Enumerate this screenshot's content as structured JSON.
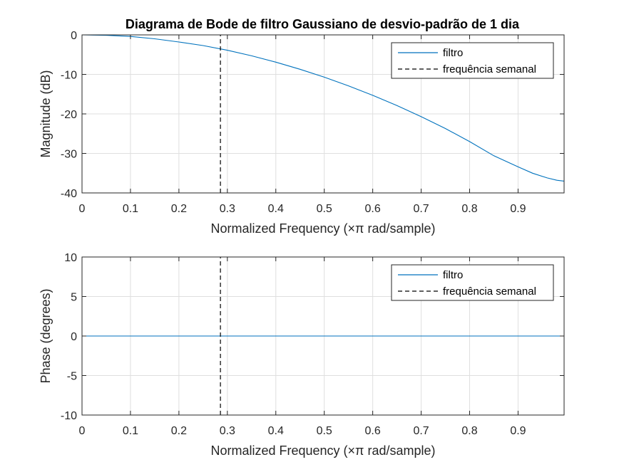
{
  "chart_data": [
    {
      "type": "line",
      "title": "Diagrama de Bode de filtro Gaussiano de desvio-padrão de 1 dia",
      "xlabel": "Normalized Frequency  (×π rad/sample)",
      "ylabel": "Magnitude (dB)",
      "xlim": [
        0,
        0.995
      ],
      "ylim": [
        -40,
        0
      ],
      "xticks": [
        0,
        0.1,
        0.2,
        0.3,
        0.4,
        0.5,
        0.6,
        0.7,
        0.8,
        0.9
      ],
      "xtick_labels": [
        "0",
        "0.1",
        "0.2",
        "0.3",
        "0.4",
        "0.5",
        "0.6",
        "0.7",
        "0.8",
        "0.9"
      ],
      "yticks": [
        0,
        -10,
        -20,
        -30,
        -40
      ],
      "ytick_labels": [
        "0",
        "-10",
        "-20",
        "-30",
        "-40"
      ],
      "grid": true,
      "legend_position": "top-right",
      "series": [
        {
          "name": "filtro",
          "color": "#0072BD",
          "style": "solid",
          "x": [
            0,
            0.05,
            0.1,
            0.15,
            0.2,
            0.25,
            0.3,
            0.35,
            0.4,
            0.45,
            0.5,
            0.55,
            0.6,
            0.65,
            0.7,
            0.75,
            0.8,
            0.85,
            0.9,
            0.93,
            0.96,
            0.98,
            0.995
          ],
          "y": [
            0,
            -0.1,
            -0.4,
            -1.0,
            -1.8,
            -2.7,
            -3.9,
            -5.3,
            -6.9,
            -8.7,
            -10.7,
            -12.9,
            -15.3,
            -17.9,
            -20.7,
            -23.7,
            -27.0,
            -30.6,
            -33.4,
            -35.0,
            -36.2,
            -36.8,
            -37.0
          ]
        },
        {
          "name": "frequência semanal",
          "color": "#000000",
          "style": "dashed",
          "x": [
            0.2857,
            0.2857
          ],
          "y": [
            -40,
            0
          ]
        }
      ]
    },
    {
      "type": "line",
      "title": "",
      "xlabel": "Normalized Frequency  (×π rad/sample)",
      "ylabel": "Phase (degrees)",
      "xlim": [
        0,
        0.995
      ],
      "ylim": [
        -10,
        10
      ],
      "xticks": [
        0,
        0.1,
        0.2,
        0.3,
        0.4,
        0.5,
        0.6,
        0.7,
        0.8,
        0.9
      ],
      "xtick_labels": [
        "0",
        "0.1",
        "0.2",
        "0.3",
        "0.4",
        "0.5",
        "0.6",
        "0.7",
        "0.8",
        "0.9"
      ],
      "yticks": [
        10,
        5,
        0,
        -5,
        -10
      ],
      "ytick_labels": [
        "10",
        "5",
        "0",
        "-5",
        "-10"
      ],
      "grid": true,
      "legend_position": "top-right",
      "series": [
        {
          "name": "filtro",
          "color": "#0072BD",
          "style": "solid",
          "x": [
            0,
            0.995
          ],
          "y": [
            0,
            0
          ]
        },
        {
          "name": "frequência semanal",
          "color": "#000000",
          "style": "dashed",
          "x": [
            0.2857,
            0.2857
          ],
          "y": [
            -10,
            10
          ]
        }
      ]
    }
  ]
}
